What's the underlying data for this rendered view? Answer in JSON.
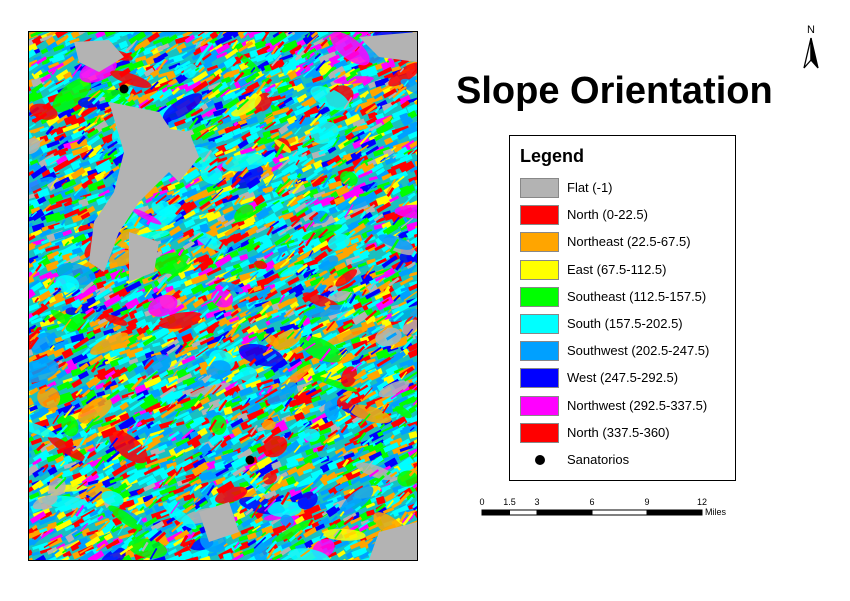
{
  "map": {
    "title": "Slope Orientation",
    "north_label": "N",
    "classes": [
      {
        "name": "flat",
        "label": "Flat (-1)",
        "color": "#b3b3b3"
      },
      {
        "name": "north-1",
        "label": "North (0-22.5)",
        "color": "#ff0000"
      },
      {
        "name": "northeast",
        "label": "Northeast (22.5-67.5)",
        "color": "#ffa500"
      },
      {
        "name": "east",
        "label": "East (67.5-112.5)",
        "color": "#ffff00"
      },
      {
        "name": "southeast",
        "label": "Southeast (112.5-157.5)",
        "color": "#00ff00"
      },
      {
        "name": "south",
        "label": "South (157.5-202.5)",
        "color": "#00ffff"
      },
      {
        "name": "southwest",
        "label": "Southwest (202.5-247.5)",
        "color": "#00a0ff"
      },
      {
        "name": "west",
        "label": "West (247.5-292.5)",
        "color": "#0000ff"
      },
      {
        "name": "northwest",
        "label": "Northwest (292.5-337.5)",
        "color": "#ff00ff"
      },
      {
        "name": "north-2",
        "label": "North (337.5-360)",
        "color": "#ff0000"
      }
    ],
    "points_label": "Sanatorios",
    "legend_title": "Legend",
    "scale": {
      "ticks": [
        "0",
        "1.5",
        "3",
        "6",
        "9",
        "12"
      ],
      "tick_values": [
        0,
        1.5,
        3,
        6,
        9,
        12
      ],
      "unit": "Miles"
    }
  }
}
